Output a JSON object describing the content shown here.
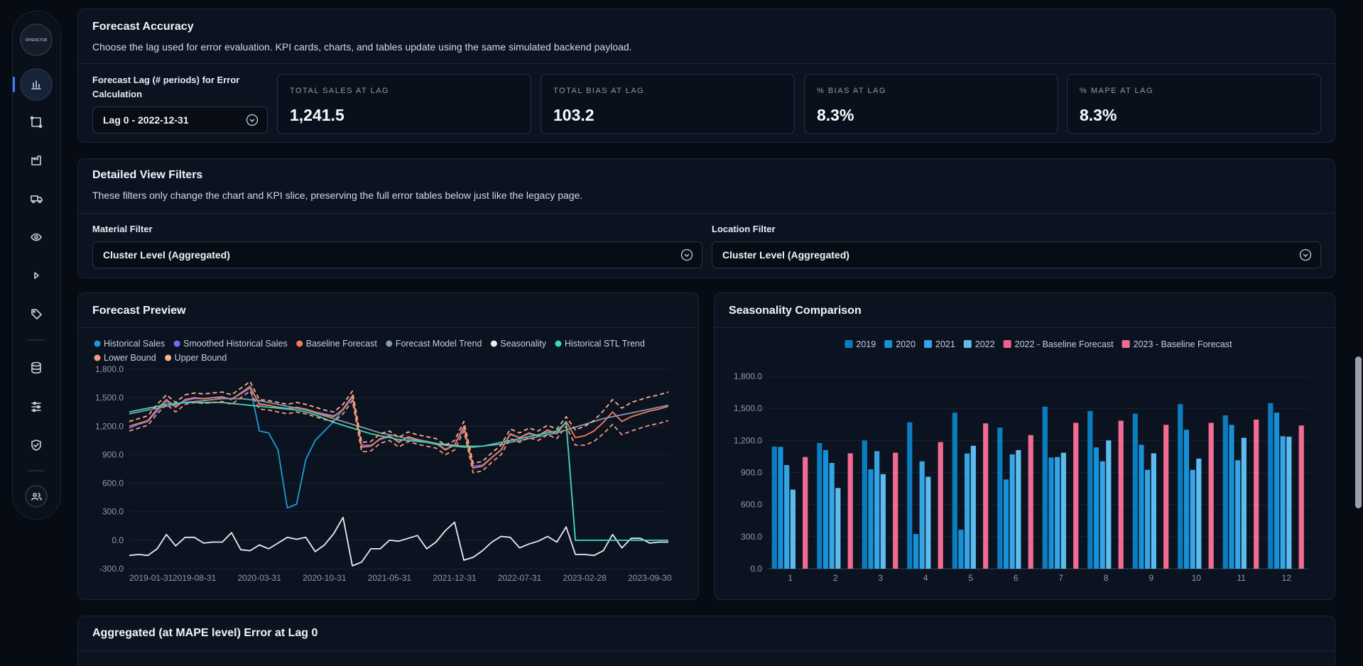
{
  "sidebar": {
    "logo": "OPSFACTOR"
  },
  "forecast_accuracy": {
    "title": "Forecast Accuracy",
    "subtitle": "Choose the lag used for error evaluation. KPI cards, charts, and tables update using the same simulated backend payload.",
    "lag_label": "Forecast Lag (# periods) for Error Calculation",
    "lag_value": "Lag 0 - 2022-12-31",
    "kpis": [
      {
        "label": "TOTAL SALES AT LAG",
        "value": "1,241.5"
      },
      {
        "label": "TOTAL BIAS AT LAG",
        "value": "103.2"
      },
      {
        "label": "% BIAS AT LAG",
        "value": "8.3%"
      },
      {
        "label": "% MAPE AT LAG",
        "value": "8.3%"
      }
    ]
  },
  "filters": {
    "title": "Detailed View Filters",
    "subtitle": "These filters only change the chart and KPI slice, preserving the full error tables below just like the legacy page.",
    "material_label": "Material Filter",
    "material_value": "Cluster Level (Aggregated)",
    "location_label": "Location Filter",
    "location_value": "Cluster Level (Aggregated)"
  },
  "chart_data": [
    {
      "type": "line",
      "title": "Forecast Preview",
      "categories": [
        "2019-01-31",
        null,
        null,
        null,
        null,
        null,
        null,
        "2019-08-31",
        null,
        null,
        null,
        null,
        null,
        null,
        "2020-03-31",
        null,
        null,
        null,
        null,
        null,
        null,
        "2020-10-31",
        null,
        null,
        null,
        null,
        null,
        null,
        "2021-05-31",
        null,
        null,
        null,
        null,
        null,
        null,
        "2021-12-31",
        null,
        null,
        null,
        null,
        null,
        null,
        "2022-07-31",
        null,
        null,
        null,
        null,
        null,
        null,
        "2023-02-28",
        null,
        null,
        null,
        null,
        null,
        null,
        "2023-09-30",
        null,
        null
      ],
      "ylim": [
        -300,
        1800
      ],
      "yticks": [
        {
          "value": -300,
          "label": "-300.0"
        },
        {
          "value": 0,
          "label": "0.0"
        },
        {
          "value": 300,
          "label": "300.0"
        },
        {
          "value": 600,
          "label": "600.0"
        },
        {
          "value": 900,
          "label": "900.0"
        },
        {
          "value": 1200,
          "label": "1,200.0"
        },
        {
          "value": 1500,
          "label": "1,500.0"
        },
        {
          "value": 1800,
          "label": "1,800.0"
        }
      ],
      "grid": true,
      "series": [
        {
          "name": "Historical Sales",
          "color": "#1e9bd7",
          "values": [
            1200,
            1230,
            1260,
            1380,
            1480,
            1400,
            1480,
            1500,
            1490,
            1500,
            1510,
            1480,
            1550,
            1620,
            1150,
            1130,
            950,
            340,
            380,
            850,
            1050,
            1150,
            1250,
            1380,
            1520,
            980,
            990,
            1070,
            1100,
            1030,
            1090,
            1060,
            1040,
            1020,
            950,
            1000,
            1200,
            760,
            780,
            870,
            950,
            1120,
            1080,
            1130,
            1100,
            1160,
            1120,
            1250,
            null,
            null,
            null,
            null,
            null,
            null,
            null,
            null,
            null,
            null,
            null
          ]
        },
        {
          "name": "Smoothed Historical Sales",
          "color": "#6b6ff0",
          "values": [
            1180,
            1220,
            1250,
            1360,
            1460,
            1410,
            1470,
            1490,
            1490,
            1500,
            1500,
            1490,
            1540,
            1600,
            1440,
            1420,
            1400,
            1390,
            1390,
            1380,
            1350,
            1330,
            1310,
            1370,
            1500,
            1000,
            1000,
            1060,
            1090,
            1040,
            1080,
            1060,
            1040,
            1020,
            960,
            1000,
            1180,
            780,
            790,
            870,
            950,
            1110,
            1080,
            1120,
            1100,
            1150,
            1130,
            1240,
            0,
            0,
            0,
            0,
            0,
            0,
            0,
            0,
            0,
            0,
            0
          ]
        },
        {
          "name": "Baseline Forecast",
          "color": "#f47c5a",
          "values": [
            1200,
            1230,
            1260,
            1380,
            1480,
            1400,
            1480,
            1500,
            1490,
            1500,
            1510,
            1480,
            1550,
            1620,
            1430,
            1420,
            1400,
            1380,
            1400,
            1380,
            1350,
            1320,
            1300,
            1380,
            1520,
            980,
            990,
            1070,
            1100,
            1030,
            1090,
            1060,
            1040,
            1020,
            950,
            1000,
            1200,
            760,
            780,
            870,
            950,
            1120,
            1080,
            1130,
            1100,
            1160,
            1120,
            1250,
            1080,
            1100,
            1150,
            1240,
            1350,
            1250,
            1300,
            1330,
            1360,
            1380,
            1410
          ]
        },
        {
          "name": "Forecast Model Trend",
          "color": "#8a99a8",
          "values": [
            1330,
            1350,
            1370,
            1390,
            1410,
            1430,
            1450,
            1460,
            1470,
            1480,
            1490,
            1490,
            1490,
            1480,
            1470,
            1450,
            1430,
            1410,
            1390,
            1370,
            1340,
            1310,
            1280,
            1250,
            1220,
            1190,
            1160,
            1130,
            1110,
            1090,
            1070,
            1050,
            1040,
            1020,
            1010,
            1000,
            990,
            990,
            990,
            1000,
            1010,
            1030,
            1050,
            1070,
            1090,
            1110,
            1130,
            1160,
            1190,
            1220,
            1250,
            1280,
            1300,
            1320,
            1340,
            1360,
            1380,
            1400,
            1420
          ]
        },
        {
          "name": "Seasonality",
          "color": "#e8ecf0",
          "values": [
            -160,
            -150,
            -160,
            -90,
            60,
            -60,
            30,
            30,
            -30,
            -20,
            -20,
            80,
            -100,
            -110,
            -50,
            -90,
            -30,
            30,
            10,
            30,
            -120,
            -50,
            70,
            240,
            -270,
            -230,
            -90,
            -90,
            0,
            -10,
            20,
            50,
            -90,
            -20,
            100,
            190,
            -210,
            -180,
            -110,
            -20,
            40,
            30,
            -80,
            -40,
            -10,
            40,
            -20,
            140,
            -150,
            -150,
            -160,
            -110,
            60,
            -80,
            20,
            20,
            -30,
            -20,
            -20
          ]
        },
        {
          "name": "Historical STL Trend",
          "color": "#3dd6b0",
          "values": [
            1350,
            1370,
            1390,
            1410,
            1430,
            1440,
            1450,
            1450,
            1450,
            1450,
            1450,
            1440,
            1430,
            1420,
            1410,
            1400,
            1390,
            1380,
            1370,
            1350,
            1320,
            1280,
            1240,
            1210,
            1180,
            1150,
            1120,
            1100,
            1080,
            1060,
            1050,
            1040,
            1030,
            1010,
            1000,
            990,
            980,
            980,
            990,
            1010,
            1030,
            1050,
            1070,
            1090,
            1110,
            1130,
            1150,
            1240,
            0,
            0,
            0,
            0,
            0,
            0,
            0,
            0,
            0,
            0,
            0
          ]
        },
        {
          "name": "Lower Bound",
          "color": "#f59a7a",
          "line_style": "dashed",
          "values": [
            1150,
            1180,
            1210,
            1330,
            1430,
            1350,
            1430,
            1450,
            1440,
            1450,
            1460,
            1430,
            1500,
            1570,
            1380,
            1370,
            1350,
            1330,
            1350,
            1330,
            1300,
            1270,
            1250,
            1330,
            1470,
            930,
            940,
            1020,
            1050,
            980,
            1040,
            1010,
            990,
            970,
            900,
            950,
            1150,
            710,
            730,
            820,
            900,
            1070,
            1030,
            1080,
            1050,
            1110,
            1070,
            1200,
            1000,
            1000,
            1040,
            1120,
            1220,
            1110,
            1150,
            1180,
            1210,
            1230,
            1260
          ]
        },
        {
          "name": "Upper Bound",
          "color": "#fbb08f",
          "line_style": "dashed",
          "values": [
            1250,
            1280,
            1310,
            1430,
            1530,
            1450,
            1530,
            1550,
            1540,
            1550,
            1560,
            1530,
            1600,
            1670,
            1480,
            1470,
            1450,
            1430,
            1450,
            1430,
            1400,
            1370,
            1350,
            1430,
            1570,
            1030,
            1040,
            1120,
            1150,
            1080,
            1140,
            1110,
            1090,
            1070,
            1000,
            1050,
            1250,
            810,
            830,
            920,
            1000,
            1170,
            1130,
            1180,
            1150,
            1210,
            1170,
            1300,
            1160,
            1200,
            1260,
            1360,
            1480,
            1390,
            1450,
            1480,
            1510,
            1530,
            1560
          ]
        }
      ]
    },
    {
      "type": "bar",
      "title": "Seasonality Comparison",
      "categories": [
        "1",
        "2",
        "3",
        "4",
        "5",
        "6",
        "7",
        "8",
        "9",
        "10",
        "11",
        "12"
      ],
      "ylim": [
        0,
        1800
      ],
      "yticks": [
        {
          "value": 0,
          "label": "0.0"
        },
        {
          "value": 300,
          "label": "300.0"
        },
        {
          "value": 600,
          "label": "600.0"
        },
        {
          "value": 900,
          "label": "900.0"
        },
        {
          "value": 1200,
          "label": "1,200.0"
        },
        {
          "value": 1500,
          "label": "1,500.0"
        },
        {
          "value": 1800,
          "label": "1,800.0"
        }
      ],
      "grid": true,
      "series": [
        {
          "name": "2019",
          "color": "#0b7dbf",
          "values": [
            1143,
            1176,
            1200,
            1370,
            1460,
            1320,
            1516,
            1476,
            1451,
            1540,
            1435,
            1549
          ]
        },
        {
          "name": "2020",
          "color": "#1690d6",
          "values": [
            1140,
            1110,
            930,
            325,
            365,
            835,
            1040,
            1135,
            1160,
            1300,
            1346,
            1460
          ]
        },
        {
          "name": "2021",
          "color": "#36a5e6",
          "values": [
            970,
            990,
            1100,
            1005,
            1078,
            1070,
            1045,
            1005,
            925,
            925,
            1015,
            1240
          ]
        },
        {
          "name": "2022",
          "color": "#5cbcef",
          "values": [
            740,
            755,
            885,
            860,
            1150,
            1110,
            1085,
            1200,
            1080,
            1030,
            1225,
            1235
          ]
        },
        {
          "name": "2022 - Baseline Forecast",
          "color": "#ef5f8c",
          "values": [
            null,
            null,
            null,
            null,
            null,
            null,
            null,
            null,
            null,
            null,
            null,
            null
          ]
        },
        {
          "name": "2023 - Baseline Forecast",
          "color": "#f26b92",
          "values": [
            1045,
            1080,
            1085,
            1185,
            1360,
            1250,
            1365,
            1385,
            1346,
            1365,
            1395,
            1340
          ]
        }
      ]
    }
  ],
  "error_section": {
    "title": "Aggregated (at MAPE level) Error at Lag 0"
  }
}
